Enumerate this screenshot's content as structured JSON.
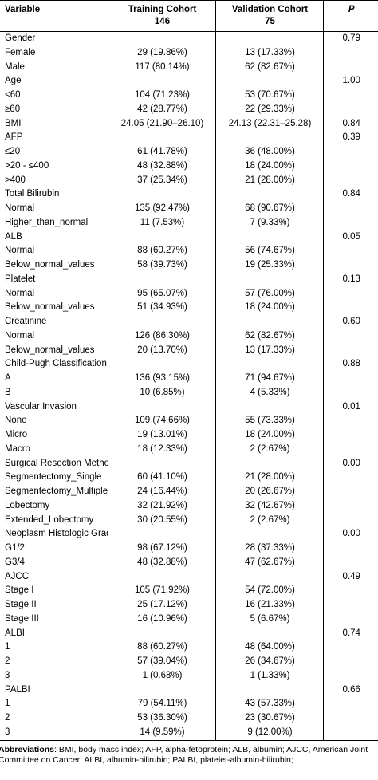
{
  "header": {
    "variable": "Variable",
    "training_line1": "Training Cohort",
    "training_line2": "146",
    "validation_line1": "Validation Cohort",
    "validation_line2": "75",
    "p": "P"
  },
  "rows": [
    {
      "variable": "Gender",
      "training": "",
      "validation": "",
      "p": "0.79"
    },
    {
      "variable": "Female",
      "training": "29 (19.86%)",
      "validation": "13 (17.33%)",
      "p": ""
    },
    {
      "variable": "Male",
      "training": "117 (80.14%)",
      "validation": "62 (82.67%)",
      "p": ""
    },
    {
      "variable": "Age",
      "training": "",
      "validation": "",
      "p": "1.00"
    },
    {
      "variable": "<60",
      "training": "104 (71.23%)",
      "validation": "53 (70.67%)",
      "p": ""
    },
    {
      "variable": "≥60",
      "training": "42 (28.77%)",
      "validation": "22 (29.33%)",
      "p": ""
    },
    {
      "variable": "BMI",
      "training": "24.05 (21.90–26.10)",
      "validation": "24.13 (22.31–25.28)",
      "p": "0.84"
    },
    {
      "variable": "AFP",
      "training": "",
      "validation": "",
      "p": "0.39"
    },
    {
      "variable": "≤20",
      "training": "61 (41.78%)",
      "validation": "36 (48.00%)",
      "p": ""
    },
    {
      "variable": ">20 - ≤400",
      "training": "48 (32.88%)",
      "validation": "18 (24.00%)",
      "p": ""
    },
    {
      "variable": ">400",
      "training": "37 (25.34%)",
      "validation": "21 (28.00%)",
      "p": ""
    },
    {
      "variable": "Total Bilirubin",
      "training": "",
      "validation": "",
      "p": "0.84"
    },
    {
      "variable": "Normal",
      "training": "135 (92.47%)",
      "validation": "68 (90.67%)",
      "p": ""
    },
    {
      "variable": "Higher_than_normal",
      "training": "11 (7.53%)",
      "validation": "7 (9.33%)",
      "p": ""
    },
    {
      "variable": "ALB",
      "training": "",
      "validation": "",
      "p": "0.05"
    },
    {
      "variable": "Normal",
      "training": "88 (60.27%)",
      "validation": "56 (74.67%)",
      "p": ""
    },
    {
      "variable": "Below_normal_values",
      "training": "58 (39.73%)",
      "validation": "19 (25.33%)",
      "p": ""
    },
    {
      "variable": "Platelet",
      "training": "",
      "validation": "",
      "p": "0.13"
    },
    {
      "variable": "Normal",
      "training": "95 (65.07%)",
      "validation": "57 (76.00%)",
      "p": ""
    },
    {
      "variable": "Below_normal_values",
      "training": "51 (34.93%)",
      "validation": "18 (24.00%)",
      "p": ""
    },
    {
      "variable": "Creatinine",
      "training": "",
      "validation": "",
      "p": "0.60"
    },
    {
      "variable": "Normal",
      "training": "126 (86.30%)",
      "validation": "62 (82.67%)",
      "p": ""
    },
    {
      "variable": "Below_normal_values",
      "training": "20 (13.70%)",
      "validation": "13 (17.33%)",
      "p": ""
    },
    {
      "variable": "Child-Pugh Classification",
      "training": "",
      "validation": "",
      "p": "0.88"
    },
    {
      "variable": "A",
      "training": "136 (93.15%)",
      "validation": "71 (94.67%)",
      "p": ""
    },
    {
      "variable": "B",
      "training": "10 (6.85%)",
      "validation": "4 (5.33%)",
      "p": ""
    },
    {
      "variable": "Vascular Invasion",
      "training": "",
      "validation": "",
      "p": "0.01"
    },
    {
      "variable": "None",
      "training": "109 (74.66%)",
      "validation": "55 (73.33%)",
      "p": ""
    },
    {
      "variable": "Micro",
      "training": "19 (13.01%)",
      "validation": "18 (24.00%)",
      "p": ""
    },
    {
      "variable": "Macro",
      "training": "18 (12.33%)",
      "validation": "2 (2.67%)",
      "p": ""
    },
    {
      "variable": "Surgical Resection Method",
      "training": "",
      "validation": "",
      "p": "0.00"
    },
    {
      "variable": "Segmentectomy_Single",
      "training": "60 (41.10%)",
      "validation": "21 (28.00%)",
      "p": ""
    },
    {
      "variable": "Segmentectomy_Multiple",
      "training": "24 (16.44%)",
      "validation": "20 (26.67%)",
      "p": ""
    },
    {
      "variable": "Lobectomy",
      "training": "32 (21.92%)",
      "validation": "32 (42.67%)",
      "p": ""
    },
    {
      "variable": "Extended_Lobectomy",
      "training": "30 (20.55%)",
      "validation": "2 (2.67%)",
      "p": ""
    },
    {
      "variable": "Neoplasm Histologic Grade",
      "training": "",
      "validation": "",
      "p": "0.00"
    },
    {
      "variable": "G1/2",
      "training": "98 (67.12%)",
      "validation": "28 (37.33%)",
      "p": ""
    },
    {
      "variable": "G3/4",
      "training": "48 (32.88%)",
      "validation": "47 (62.67%)",
      "p": ""
    },
    {
      "variable": "AJCC",
      "training": "",
      "validation": "",
      "p": "0.49"
    },
    {
      "variable": "Stage I",
      "training": "105 (71.92%)",
      "validation": "54 (72.00%)",
      "p": ""
    },
    {
      "variable": "Stage II",
      "training": "25 (17.12%)",
      "validation": "16 (21.33%)",
      "p": ""
    },
    {
      "variable": "Stage III",
      "training": "16 (10.96%)",
      "validation": "5 (6.67%)",
      "p": ""
    },
    {
      "variable": "ALBI",
      "training": "",
      "validation": "",
      "p": "0.74"
    },
    {
      "variable": "1",
      "training": "88 (60.27%)",
      "validation": "48 (64.00%)",
      "p": ""
    },
    {
      "variable": "2",
      "training": "57 (39.04%)",
      "validation": "26 (34.67%)",
      "p": ""
    },
    {
      "variable": "3",
      "training": "1 (0.68%)",
      "validation": "1 (1.33%)",
      "p": ""
    },
    {
      "variable": "PALBI",
      "training": "",
      "validation": "",
      "p": "0.66"
    },
    {
      "variable": "1",
      "training": "79 (54.11%)",
      "validation": "43 (57.33%)",
      "p": ""
    },
    {
      "variable": "2",
      "training": "53 (36.30%)",
      "validation": "23 (30.67%)",
      "p": ""
    },
    {
      "variable": "3",
      "training": "14 (9.59%)",
      "validation": "9 (12.00%)",
      "p": ""
    }
  ],
  "footnote": {
    "label": "Abbreviations",
    "text": ": BMI, body mass index; AFP, alpha-fetoprotein; ALB, albumin; AJCC, American Joint Committee on Cancer; ALBI, albumin-bilirubin; PALBI, platelet-albumin-bilirubin;"
  }
}
